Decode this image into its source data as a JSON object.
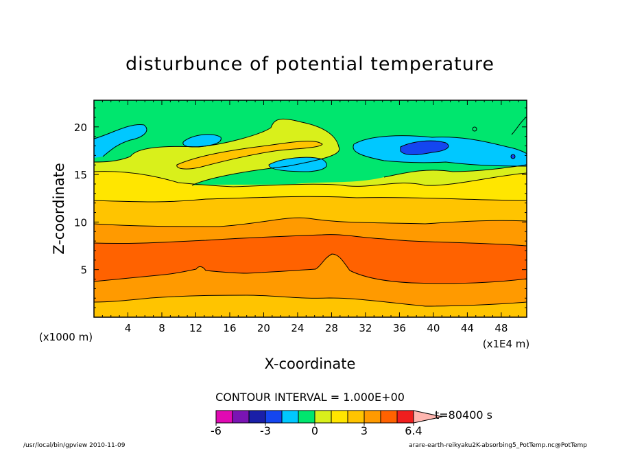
{
  "chart_data": {
    "type": "heatmap",
    "title": "disturbunce of potential temperature",
    "xlabel": "X-coordinate",
    "ylabel": "Z-coordinate",
    "x_unit": "(x1E4 m)",
    "y_unit": "(x1000 m)",
    "xlim": [
      0,
      51
    ],
    "ylim": [
      0,
      22.8
    ],
    "x_ticks": [
      4,
      8,
      12,
      16,
      20,
      24,
      28,
      32,
      36,
      40,
      44,
      48
    ],
    "y_ticks": [
      5,
      10,
      15,
      20
    ],
    "contour_interval_label": "CONTOUR INTERVAL = 1.000E+00",
    "time_label": "t=80400 s",
    "colorbar": {
      "levels": [
        -6,
        -5,
        -4,
        -3,
        -2,
        -1,
        0,
        1,
        2,
        3,
        4,
        5,
        6,
        6.4
      ],
      "tick_labels": [
        "-6",
        "-3",
        "0",
        "3",
        "6.4"
      ],
      "colors": [
        "#e00ab3",
        "#7a14b4",
        "#1a1fa8",
        "#1446f0",
        "#00c8ff",
        "#00e66e",
        "#d9f01b",
        "#ffe600",
        "#ffc400",
        "#ff9a00",
        "#ff6200",
        "#f01e1e",
        "#ff7a7a",
        "#ffb6b0"
      ]
    },
    "footer_left": "/usr/local/bin/gpview  2010-11-09",
    "footer_right": "arare-earth-reikyaku2K-absorbing5_PotTemp.nc@PotTemp"
  }
}
